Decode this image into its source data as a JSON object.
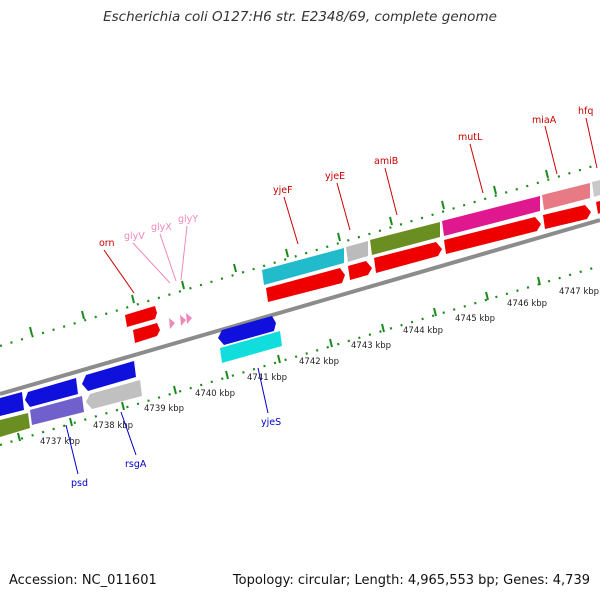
{
  "title": "Escherichia coli O127:H6 str. E2348/69, complete genome",
  "footer": {
    "accession": "Accession: NC_011601",
    "summary": "Topology: circular; Length: 4,965,553 bp; Genes: 4,739"
  },
  "colors": {
    "backbone": "#8c8c8c",
    "ticks": "#1a8a1a",
    "label_forward": "#cc0000",
    "label_reverse": "#0000cc",
    "label_trna": "#ee88bb"
  },
  "scale_labels": [
    "4737 kbp",
    "4738 kbp",
    "4739 kbp",
    "4740 kbp",
    "4741 kbp",
    "4742 kbp",
    "4743 kbp",
    "4744 kbp",
    "4745 kbp",
    "4746 kbp",
    "4747 kbp"
  ],
  "gene_labels": {
    "forward": [
      "orn",
      "yjeF",
      "yjeE",
      "amiB",
      "mutL",
      "miaA",
      "hfq"
    ],
    "trna": [
      "glyV",
      "glyX",
      "glyY"
    ],
    "reverse": [
      "psd",
      "rsgA",
      "yjeS"
    ]
  }
}
